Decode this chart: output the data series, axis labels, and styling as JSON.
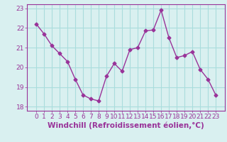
{
  "x": [
    0,
    1,
    2,
    3,
    4,
    5,
    6,
    7,
    8,
    9,
    10,
    11,
    12,
    13,
    14,
    15,
    16,
    17,
    18,
    19,
    20,
    21,
    22,
    23
  ],
  "y": [
    22.2,
    21.7,
    21.1,
    20.7,
    20.3,
    19.4,
    18.6,
    18.4,
    18.3,
    19.55,
    20.2,
    19.8,
    20.9,
    21.0,
    21.85,
    21.9,
    22.9,
    21.5,
    20.5,
    20.6,
    20.8,
    19.9,
    19.4,
    18.6
  ],
  "line_color": "#993399",
  "marker": "D",
  "marker_size": 2.5,
  "bg_color": "#d9f0f0",
  "grid_color": "#aadddd",
  "xlabel": "Windchill (Refroidissement éolien,°C)",
  "xlabel_color": "#993399",
  "ylim": [
    17.8,
    23.2
  ],
  "yticks": [
    18,
    19,
    20,
    21,
    22,
    23
  ],
  "xticks": [
    0,
    1,
    2,
    3,
    4,
    5,
    6,
    7,
    8,
    9,
    10,
    11,
    12,
    13,
    14,
    15,
    16,
    17,
    18,
    19,
    20,
    21,
    22,
    23
  ],
  "tick_color": "#993399",
  "tick_fontsize": 6.5,
  "xlabel_fontsize": 7.5,
  "spine_color": "#993399"
}
